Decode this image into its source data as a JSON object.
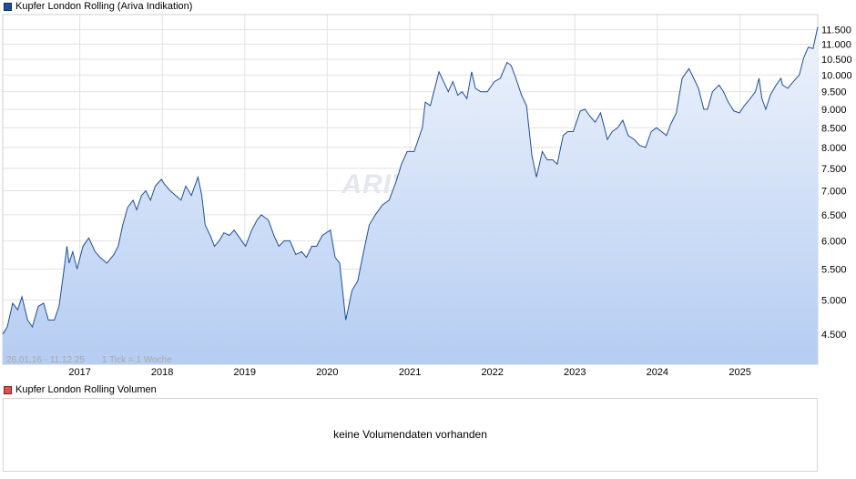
{
  "price_legend_label": "Kupfer London Rolling (Ariva Indikation)",
  "volume_legend_label": "Kupfer London Rolling Volumen",
  "no_volume_text": "keine Volumendaten vorhanden",
  "watermark_text": "ARIVA.DE",
  "colors": {
    "line": "#1f4e9a",
    "area_top": "#eef3fc",
    "area_bottom": "#b5cdf2",
    "grid": "#e2e2e2"
  },
  "chart_data": {
    "type": "area",
    "title": "Kupfer London Rolling (Ariva Indikation)",
    "range_label": "26.01.16 - 11.12.25",
    "tick_label": "1 Tick = 1 Woche",
    "y_scale": "log",
    "ylim": [
      4100,
      12050
    ],
    "y_ticks": [
      4500,
      5000,
      5500,
      6000,
      6500,
      7000,
      7500,
      8000,
      8500,
      9000,
      9500,
      10000,
      10500,
      11000,
      11500
    ],
    "y_tick_labels": [
      "4.500",
      "5.000",
      "5.500",
      "6.000",
      "6.500",
      "7.000",
      "7.500",
      "8.000",
      "8.500",
      "9.000",
      "9.500",
      "10.000",
      "10.500",
      "11.000",
      "11.500"
    ],
    "xlim": [
      "2016-01-26",
      "2025-12-11"
    ],
    "x_ticks": [
      "2017-01-01",
      "2018-01-01",
      "2019-01-01",
      "2020-01-01",
      "2021-01-01",
      "2022-01-01",
      "2023-01-01",
      "2024-01-01",
      "2025-01-01"
    ],
    "x_tick_labels": [
      "2017",
      "2018",
      "2019",
      "2020",
      "2021",
      "2022",
      "2023",
      "2024",
      "2025"
    ],
    "series": [
      {
        "x": [
          "2016-01-26",
          "2016-02-15",
          "2016-03-10",
          "2016-04-01",
          "2016-04-20",
          "2016-05-15",
          "2016-06-05",
          "2016-07-01",
          "2016-07-25",
          "2016-08-15",
          "2016-09-10",
          "2016-10-01",
          "2016-10-20",
          "2016-11-05",
          "2016-11-15",
          "2016-12-01",
          "2016-12-20",
          "2017-01-15",
          "2017-02-10",
          "2017-03-10",
          "2017-04-01",
          "2017-05-01",
          "2017-06-01",
          "2017-06-20",
          "2017-07-10",
          "2017-08-01",
          "2017-08-25",
          "2017-09-10",
          "2017-10-01",
          "2017-10-20",
          "2017-11-10",
          "2017-12-01",
          "2017-12-28",
          "2018-01-10",
          "2018-02-05",
          "2018-03-01",
          "2018-03-25",
          "2018-04-15",
          "2018-05-10",
          "2018-06-08",
          "2018-06-25",
          "2018-07-10",
          "2018-08-01",
          "2018-08-20",
          "2018-09-10",
          "2018-10-01",
          "2018-10-25",
          "2018-11-15",
          "2018-12-10",
          "2019-01-05",
          "2019-02-01",
          "2019-02-25",
          "2019-03-15",
          "2019-04-15",
          "2019-05-10",
          "2019-06-01",
          "2019-06-25",
          "2019-07-20",
          "2019-08-15",
          "2019-09-10",
          "2019-10-01",
          "2019-10-25",
          "2019-11-15",
          "2019-12-10",
          "2020-01-15",
          "2020-02-05",
          "2020-02-25",
          "2020-03-23",
          "2020-04-20",
          "2020-05-15",
          "2020-06-10",
          "2020-07-05",
          "2020-08-01",
          "2020-09-01",
          "2020-10-01",
          "2020-11-01",
          "2020-11-25",
          "2020-12-20",
          "2021-01-20",
          "2021-02-25",
          "2021-03-10",
          "2021-04-01",
          "2021-05-10",
          "2021-05-30",
          "2021-06-20",
          "2021-07-10",
          "2021-08-01",
          "2021-08-20",
          "2021-09-10",
          "2021-10-01",
          "2021-10-18",
          "2021-11-10",
          "2021-12-10",
          "2022-01-10",
          "2022-02-05",
          "2022-03-07",
          "2022-03-25",
          "2022-04-15",
          "2022-05-10",
          "2022-06-01",
          "2022-06-25",
          "2022-07-15",
          "2022-08-10",
          "2022-09-01",
          "2022-09-25",
          "2022-10-15",
          "2022-11-10",
          "2022-12-01",
          "2022-12-25",
          "2023-01-25",
          "2023-02-15",
          "2023-03-10",
          "2023-04-01",
          "2023-04-25",
          "2023-05-25",
          "2023-06-15",
          "2023-07-10",
          "2023-08-01",
          "2023-08-25",
          "2023-09-20",
          "2023-10-15",
          "2023-11-10",
          "2023-12-05",
          "2023-12-28",
          "2024-01-20",
          "2024-02-10",
          "2024-03-01",
          "2024-03-25",
          "2024-04-20",
          "2024-05-20",
          "2024-06-10",
          "2024-07-01",
          "2024-07-25",
          "2024-08-10",
          "2024-09-01",
          "2024-09-30",
          "2024-10-20",
          "2024-11-10",
          "2024-12-05",
          "2024-12-30",
          "2025-01-20",
          "2025-02-15",
          "2025-03-10",
          "2025-03-26",
          "2025-04-08",
          "2025-04-25",
          "2025-05-15",
          "2025-06-10",
          "2025-07-01",
          "2025-07-08",
          "2025-07-31",
          "2025-08-25",
          "2025-09-20",
          "2025-10-10",
          "2025-10-30",
          "2025-11-20",
          "2025-12-11"
        ],
        "values": [
          4500,
          4600,
          4950,
          4850,
          5050,
          4700,
          4600,
          4900,
          4950,
          4700,
          4700,
          4900,
          5400,
          5900,
          5600,
          5800,
          5500,
          5900,
          6050,
          5800,
          5700,
          5600,
          5750,
          5900,
          6300,
          6650,
          6800,
          6600,
          6900,
          7000,
          6800,
          7100,
          7250,
          7150,
          7000,
          6900,
          6800,
          7100,
          6900,
          7300,
          6900,
          6300,
          6100,
          5900,
          6000,
          6150,
          6100,
          6200,
          6050,
          5900,
          6200,
          6400,
          6500,
          6400,
          6100,
          5900,
          6000,
          6000,
          5750,
          5800,
          5700,
          5900,
          5900,
          6100,
          6200,
          5700,
          5600,
          4700,
          5150,
          5300,
          5800,
          6300,
          6500,
          6700,
          6800,
          7200,
          7600,
          7900,
          7900,
          8500,
          9200,
          9100,
          10100,
          9800,
          9500,
          9800,
          9400,
          9500,
          9300,
          10100,
          9600,
          9500,
          9500,
          9800,
          9900,
          10400,
          10300,
          9900,
          9400,
          9100,
          7800,
          7300,
          7900,
          7700,
          7700,
          7600,
          8300,
          8400,
          8400,
          8950,
          9000,
          8800,
          8650,
          8900,
          8200,
          8400,
          8500,
          8700,
          8300,
          8200,
          8050,
          8000,
          8400,
          8500,
          8400,
          8300,
          8600,
          8900,
          9900,
          10200,
          9900,
          9600,
          9000,
          9000,
          9500,
          9700,
          9500,
          9200,
          8950,
          8900,
          9100,
          9300,
          9500,
          9900,
          9300,
          9000,
          9400,
          9700,
          9900,
          9700,
          9600,
          9800,
          10000,
          10550,
          10900,
          10850,
          11600
        ]
      }
    ]
  }
}
